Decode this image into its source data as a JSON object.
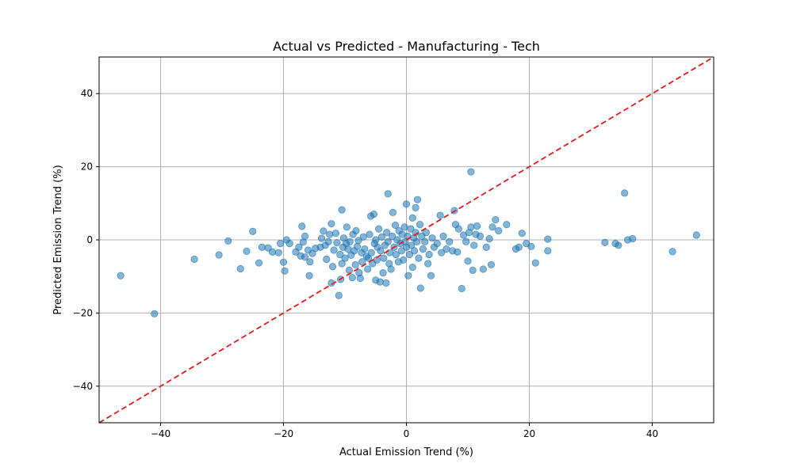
{
  "chart_data": {
    "type": "scatter",
    "title": "Actual vs Predicted - Manufacturing - Tech",
    "xlabel": "Actual Emission Trend (%)",
    "ylabel": "Predicted Emission Trend (%)",
    "xlim": [
      -50,
      50
    ],
    "ylim": [
      -50,
      50
    ],
    "xticks": [
      -40,
      -20,
      0,
      20,
      40
    ],
    "yticks": [
      -40,
      -20,
      0,
      20,
      40
    ],
    "xtick_labels": [
      "−40",
      "−20",
      "0",
      "20",
      "40"
    ],
    "ytick_labels": [
      "−40",
      "−20",
      "0",
      "20",
      "40"
    ],
    "grid": true,
    "reference_line": {
      "slope": 1,
      "intercept": 0,
      "color": "#e31a1c",
      "style": "dashed"
    },
    "marker_color": "#1f77b4",
    "points": [
      [
        -46.5,
        -9.8
      ],
      [
        -41.0,
        -20.2
      ],
      [
        -34.5,
        -5.3
      ],
      [
        -30.5,
        -4.1
      ],
      [
        -29.0,
        -0.3
      ],
      [
        -27.0,
        -7.9
      ],
      [
        -26.0,
        -3.1
      ],
      [
        -25.0,
        2.3
      ],
      [
        -24.0,
        -6.3
      ],
      [
        -23.5,
        -2.0
      ],
      [
        -22.5,
        -2.2
      ],
      [
        -21.8,
        -3.3
      ],
      [
        -20.8,
        -3.5
      ],
      [
        -20.5,
        -1.0
      ],
      [
        -20.0,
        -6.1
      ],
      [
        -19.8,
        -8.5
      ],
      [
        -19.5,
        0.0
      ],
      [
        -19.0,
        -1.0
      ],
      [
        -18.0,
        -3.3
      ],
      [
        -17.5,
        -2.0
      ],
      [
        -17.2,
        -4.4
      ],
      [
        -17.0,
        3.7
      ],
      [
        -16.8,
        -0.6
      ],
      [
        -16.5,
        1.0
      ],
      [
        -16.5,
        -4.7
      ],
      [
        -16.0,
        -2.8
      ],
      [
        -15.8,
        -9.8
      ],
      [
        -15.7,
        -6.0
      ],
      [
        -15.3,
        -3.7
      ],
      [
        -14.8,
        -2.3
      ],
      [
        -14.0,
        -2.0
      ],
      [
        -13.8,
        0.4
      ],
      [
        -13.5,
        2.4
      ],
      [
        -13.2,
        -1.5
      ],
      [
        -13.0,
        -5.3
      ],
      [
        -12.7,
        -0.5
      ],
      [
        -12.5,
        1.5
      ],
      [
        -12.2,
        -11.8
      ],
      [
        -12.2,
        4.4
      ],
      [
        -12.0,
        -7.3
      ],
      [
        -11.8,
        -2.8
      ],
      [
        -11.5,
        1.8
      ],
      [
        -11.3,
        -0.8
      ],
      [
        -11.0,
        -15.2
      ],
      [
        -10.8,
        -4.0
      ],
      [
        -10.7,
        -10.8
      ],
      [
        -10.5,
        8.2
      ],
      [
        -10.5,
        -6.5
      ],
      [
        -10.3,
        -2.0
      ],
      [
        -10.2,
        0.5
      ],
      [
        -10.0,
        -5.0
      ],
      [
        -9.8,
        -1.0
      ],
      [
        -9.7,
        3.5
      ],
      [
        -9.5,
        -2.5
      ],
      [
        -9.3,
        -8.3
      ],
      [
        -9.2,
        -0.5
      ],
      [
        -9.0,
        -4.2
      ],
      [
        -8.8,
        -10.3
      ],
      [
        -8.7,
        1.5
      ],
      [
        -8.5,
        -3.0
      ],
      [
        -8.3,
        -6.8
      ],
      [
        -8.2,
        2.5
      ],
      [
        -8.0,
        -1.8
      ],
      [
        -7.8,
        -0.2
      ],
      [
        -7.7,
        -9.0
      ],
      [
        -7.5,
        -10.5
      ],
      [
        -7.3,
        -3.5
      ],
      [
        -7.2,
        -6.0
      ],
      [
        -7.0,
        0.8
      ],
      [
        -6.8,
        -2.5
      ],
      [
        -6.5,
        -4.5
      ],
      [
        -6.3,
        -8.0
      ],
      [
        -6.2,
        -5.0
      ],
      [
        -6.0,
        1.5
      ],
      [
        -5.8,
        6.5
      ],
      [
        -5.7,
        -3.5
      ],
      [
        -5.5,
        -6.5
      ],
      [
        -5.3,
        7.0
      ],
      [
        -5.2,
        -1.0
      ],
      [
        -5.0,
        -11.0
      ],
      [
        -5.0,
        0.0
      ],
      [
        -4.8,
        -5.5
      ],
      [
        -4.7,
        -2.0
      ],
      [
        -4.5,
        3.0
      ],
      [
        -4.3,
        -11.5
      ],
      [
        -4.2,
        -3.0
      ],
      [
        -4.0,
        0.8
      ],
      [
        -3.8,
        -9.0
      ],
      [
        -3.7,
        -5.0
      ],
      [
        -3.5,
        -1.5
      ],
      [
        -3.3,
        -11.8
      ],
      [
        -3.2,
        2.0
      ],
      [
        -3.0,
        12.6
      ],
      [
        -3.0,
        -0.5
      ],
      [
        -2.8,
        -6.5
      ],
      [
        -2.7,
        -3.5
      ],
      [
        -2.5,
        -8.0
      ],
      [
        -2.3,
        1.0
      ],
      [
        -2.2,
        7.5
      ],
      [
        -2.0,
        -2.0
      ],
      [
        -1.8,
        4.0
      ],
      [
        -1.7,
        -4.0
      ],
      [
        -1.5,
        0.0
      ],
      [
        -1.3,
        -6.0
      ],
      [
        -1.2,
        2.5
      ],
      [
        -1.0,
        -1.0
      ],
      [
        -0.8,
        -3.0
      ],
      [
        -0.7,
        1.5
      ],
      [
        -0.5,
        -5.5
      ],
      [
        -0.3,
        3.5
      ],
      [
        -0.2,
        -0.5
      ],
      [
        0.0,
        -2.0
      ],
      [
        0.0,
        9.8
      ],
      [
        0.2,
        1.0
      ],
      [
        0.3,
        -9.8
      ],
      [
        0.5,
        -4.0
      ],
      [
        0.7,
        3.0
      ],
      [
        0.8,
        -1.5
      ],
      [
        1.0,
        6.0
      ],
      [
        1.0,
        -7.5
      ],
      [
        1.2,
        0.5
      ],
      [
        1.3,
        -3.0
      ],
      [
        1.5,
        8.8
      ],
      [
        1.5,
        2.0
      ],
      [
        1.7,
        -0.5
      ],
      [
        1.8,
        11.0
      ],
      [
        2.0,
        -5.0
      ],
      [
        2.2,
        4.2
      ],
      [
        2.3,
        -13.2
      ],
      [
        2.5,
        1.0
      ],
      [
        2.7,
        -2.5
      ],
      [
        3.0,
        -0.5
      ],
      [
        3.2,
        2.0
      ],
      [
        3.5,
        -6.5
      ],
      [
        3.7,
        -4.0
      ],
      [
        4.0,
        -9.8
      ],
      [
        4.2,
        0.5
      ],
      [
        4.5,
        -2.0
      ],
      [
        5.0,
        -1.0
      ],
      [
        5.5,
        6.7
      ],
      [
        5.7,
        -3.5
      ],
      [
        6.0,
        1.0
      ],
      [
        6.5,
        -2.5
      ],
      [
        7.0,
        -0.5
      ],
      [
        7.5,
        -3.0
      ],
      [
        7.8,
        8.0
      ],
      [
        8.0,
        4.2
      ],
      [
        8.3,
        -3.3
      ],
      [
        8.5,
        3.0
      ],
      [
        9.0,
        -13.3
      ],
      [
        9.3,
        1.3
      ],
      [
        9.7,
        -0.5
      ],
      [
        10.0,
        -5.8
      ],
      [
        10.2,
        2.0
      ],
      [
        10.5,
        3.5
      ],
      [
        10.5,
        18.6
      ],
      [
        10.8,
        -8.3
      ],
      [
        11.0,
        -1.5
      ],
      [
        11.3,
        1.5
      ],
      [
        11.5,
        3.8
      ],
      [
        12.0,
        1.0
      ],
      [
        12.5,
        -8.0
      ],
      [
        13.0,
        -2.0
      ],
      [
        13.5,
        0.3
      ],
      [
        13.8,
        -6.8
      ],
      [
        14.0,
        3.5
      ],
      [
        14.5,
        5.5
      ],
      [
        15.0,
        2.5
      ],
      [
        16.3,
        4.2
      ],
      [
        17.8,
        -2.5
      ],
      [
        18.3,
        -2.0
      ],
      [
        18.8,
        1.8
      ],
      [
        19.5,
        -1.0
      ],
      [
        20.3,
        -1.8
      ],
      [
        21.0,
        -6.3
      ],
      [
        23.0,
        0.2
      ],
      [
        23.0,
        -3.0
      ],
      [
        32.3,
        -0.7
      ],
      [
        34.0,
        -1.0
      ],
      [
        34.5,
        -1.5
      ],
      [
        35.5,
        12.8
      ],
      [
        36.0,
        0.0
      ],
      [
        36.8,
        0.3
      ],
      [
        43.3,
        -3.2
      ],
      [
        47.2,
        1.3
      ]
    ]
  }
}
